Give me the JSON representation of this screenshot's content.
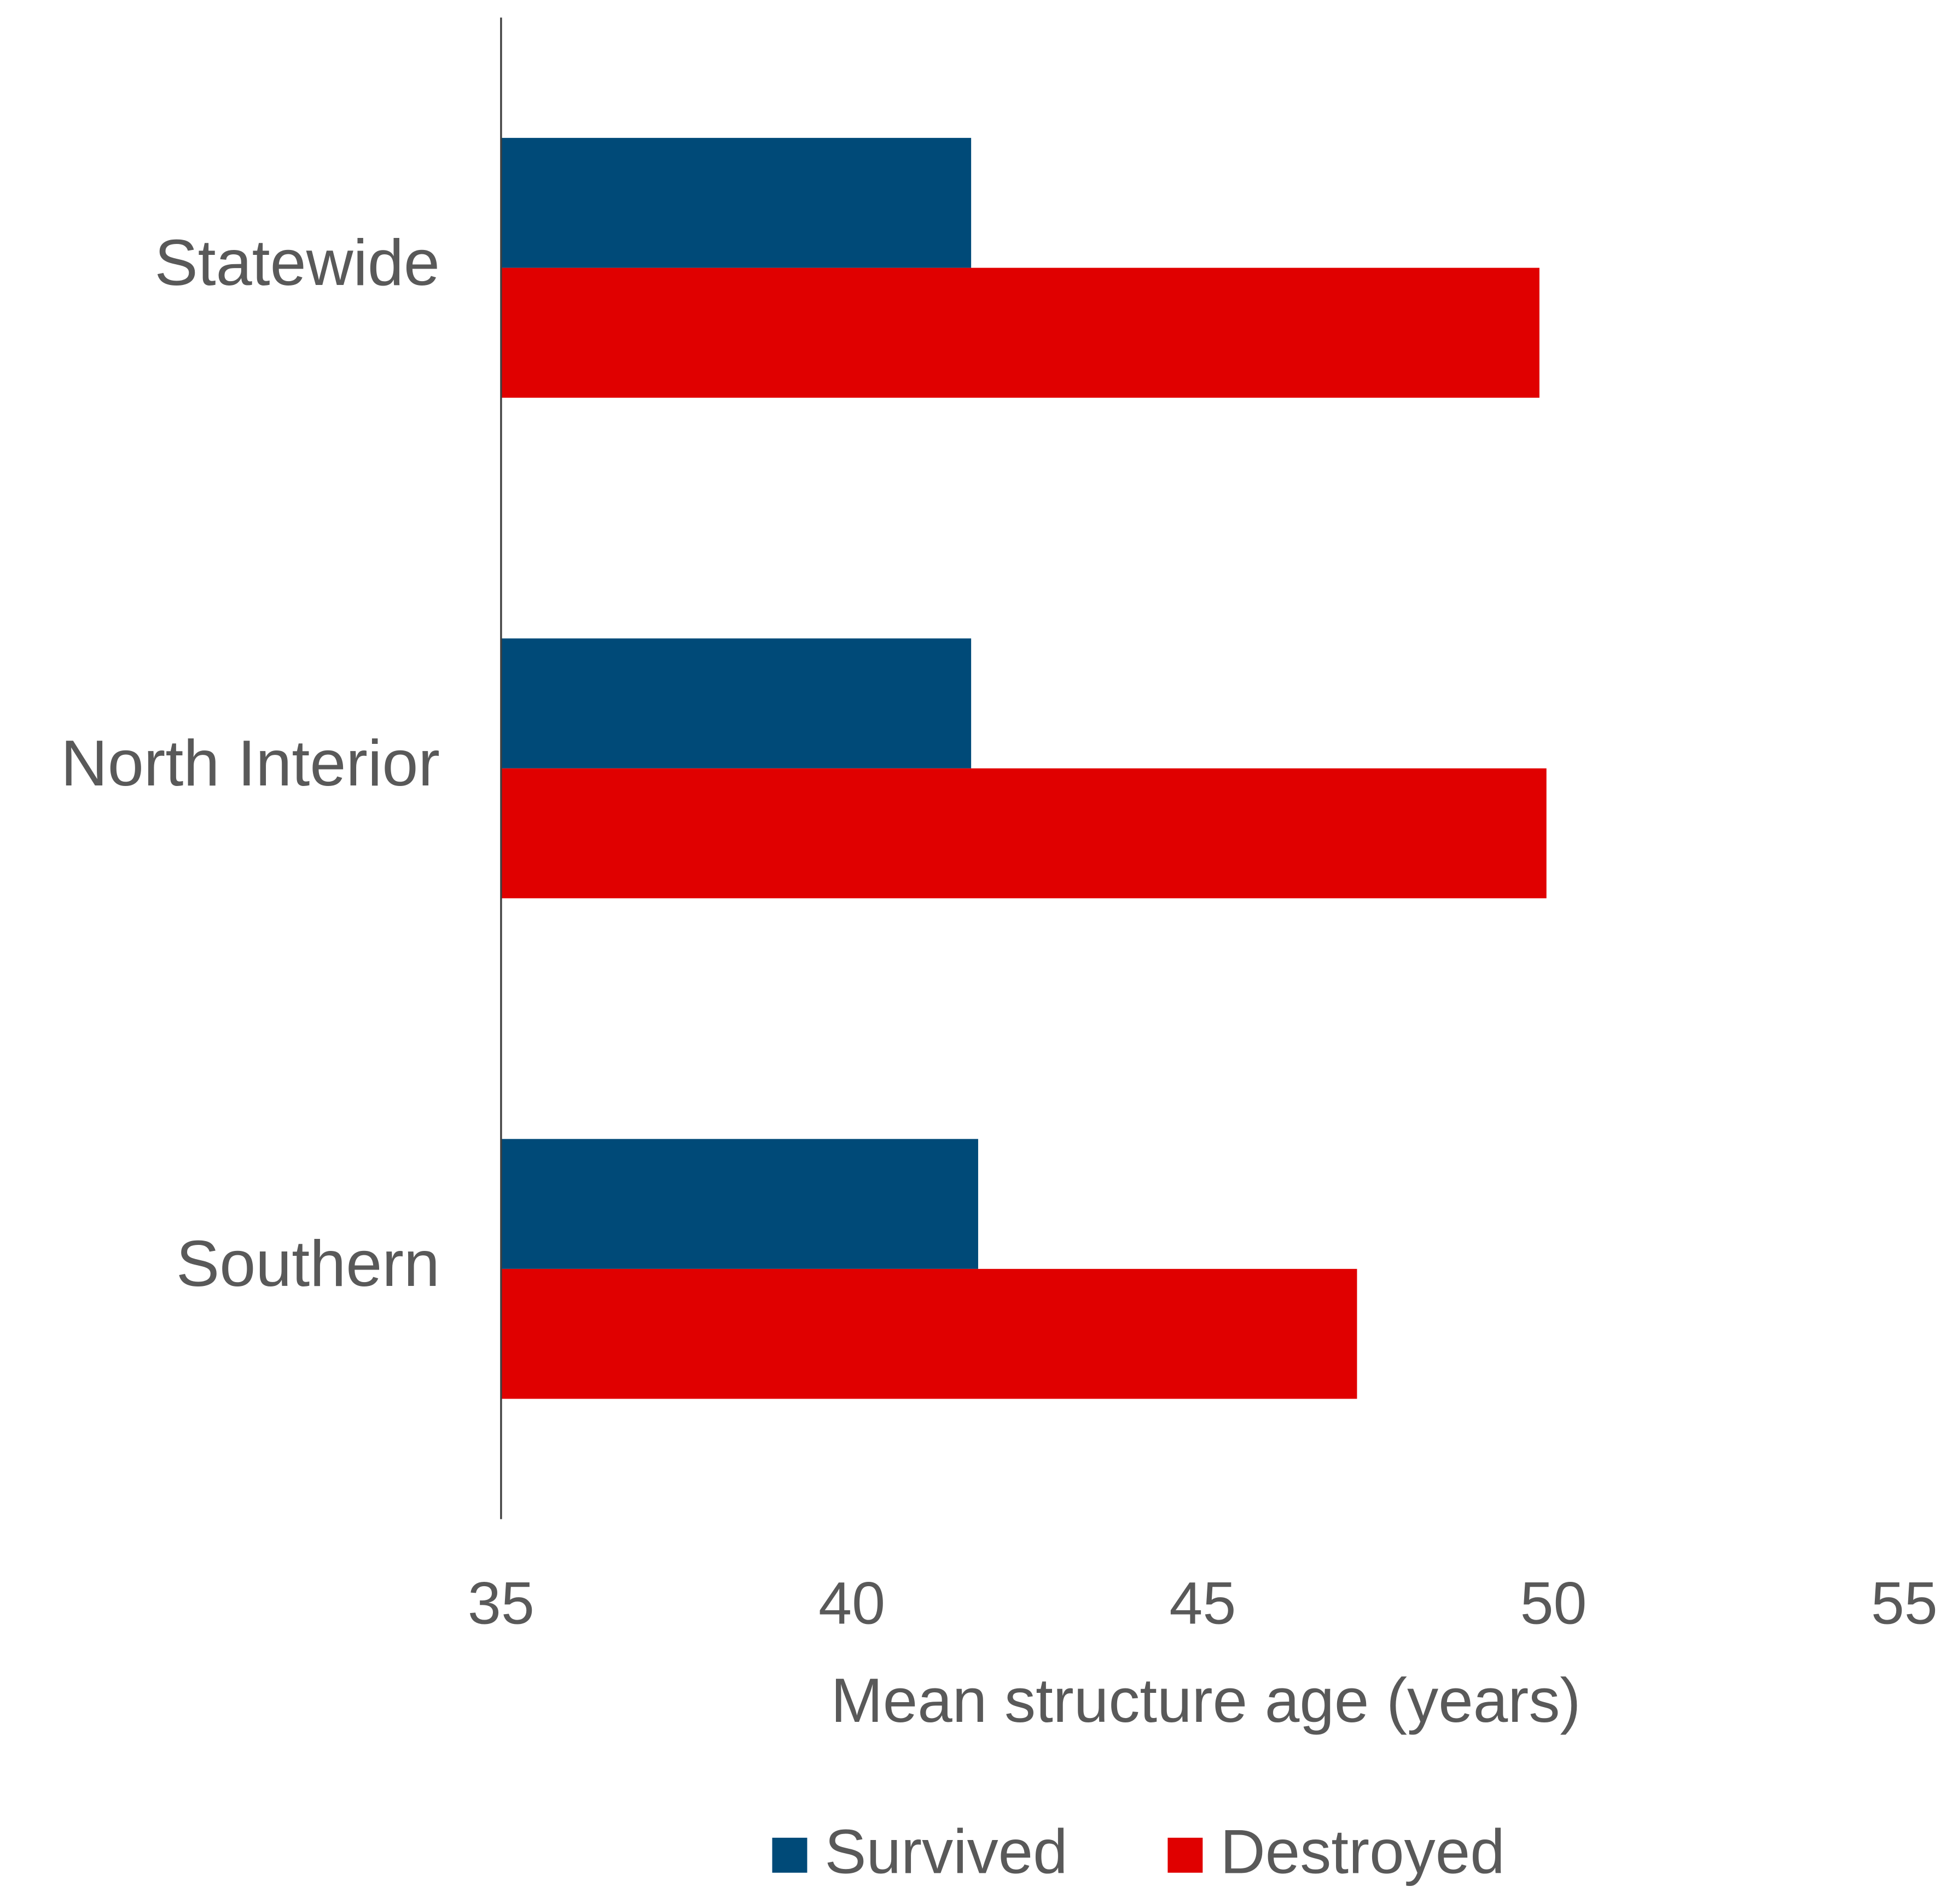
{
  "chart_data": {
    "type": "hbar",
    "x_label": "Mean structure age (years)",
    "categories": [
      "Statewide",
      "North Interior",
      "Southern"
    ],
    "series": [
      {
        "name": "Survived",
        "color": "#004a78",
        "values": [
          41.7,
          41.7,
          41.8
        ]
      },
      {
        "name": "Destroyed",
        "color": "#e00000",
        "values": [
          49.8,
          49.9,
          47.2
        ]
      }
    ],
    "xlim": [
      35,
      55
    ],
    "xticks": [
      35,
      40,
      45,
      50,
      55
    ],
    "grid": false,
    "legend": "bottom"
  }
}
